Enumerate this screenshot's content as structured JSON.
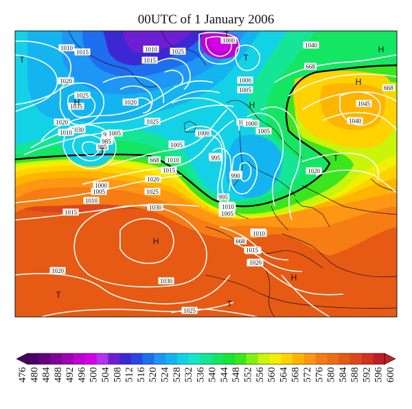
{
  "title": "00UTC of 1 January 2006",
  "colorbar": {
    "ticks": [
      "476",
      "480",
      "484",
      "488",
      "492",
      "496",
      "500",
      "504",
      "508",
      "512",
      "516",
      "520",
      "524",
      "528",
      "532",
      "536",
      "540",
      "544",
      "548",
      "552",
      "556",
      "560",
      "564",
      "568",
      "572",
      "576",
      "580",
      "584",
      "588",
      "592",
      "596",
      "600"
    ],
    "colors": [
      "#4a0064",
      "#64007d",
      "#82009a",
      "#a000b4",
      "#be00d2",
      "#d200e6",
      "#b432f0",
      "#6e1ed2",
      "#3c28d2",
      "#2846e6",
      "#1e6ef0",
      "#1e96f5",
      "#14b4f0",
      "#14d2e6",
      "#14e6c8",
      "#14e696",
      "#14e664",
      "#14e632",
      "#3ce61e",
      "#82f014",
      "#c8f50a",
      "#f0f000",
      "#ffd200",
      "#ffb400",
      "#ff9614",
      "#f57d14",
      "#eb6e14",
      "#e65a14",
      "#dc461e",
      "#d2321e",
      "#be1e28"
    ]
  },
  "pressure_labels": [
    {
      "t": "1010"
    },
    {
      "t": "1020"
    },
    {
      "t": "1015"
    },
    {
      "t": "1025"
    },
    {
      "t": "1035"
    },
    {
      "t": "1030"
    },
    {
      "t": "995"
    },
    {
      "t": "995"
    },
    {
      "t": "985"
    },
    {
      "t": "1040"
    },
    {
      "t": "668"
    },
    {
      "t": "668"
    },
    {
      "t": "1020"
    },
    {
      "t": "1025"
    },
    {
      "t": "1010"
    },
    {
      "t": "1005"
    },
    {
      "t": "1020"
    },
    {
      "t": "1015"
    },
    {
      "t": "1025"
    },
    {
      "t": "1005"
    },
    {
      "t": "1000"
    },
    {
      "t": "1000"
    },
    {
      "t": "1005"
    },
    {
      "t": "1045"
    },
    {
      "t": "1040"
    },
    {
      "t": "1020"
    },
    {
      "t": "1015"
    },
    {
      "t": "1010"
    },
    {
      "t": "995"
    },
    {
      "t": "990"
    },
    {
      "t": "985"
    },
    {
      "t": "1000"
    },
    {
      "t": "1005"
    },
    {
      "t": "1005"
    },
    {
      "t": "1010"
    },
    {
      "t": "1000"
    },
    {
      "t": "1005"
    },
    {
      "t": "668"
    },
    {
      "t": "1010"
    },
    {
      "t": "995"
    },
    {
      "t": "990"
    },
    {
      "t": "1015"
    },
    {
      "t": "1020"
    },
    {
      "t": "1000"
    },
    {
      "t": "1005"
    },
    {
      "t": "1010"
    },
    {
      "t": "1025"
    },
    {
      "t": "995"
    },
    {
      "t": "1000"
    },
    {
      "t": "1005"
    },
    {
      "t": "1015"
    },
    {
      "t": "1030"
    },
    {
      "t": "1010"
    },
    {
      "t": "668"
    },
    {
      "t": "1015"
    },
    {
      "t": "1020"
    },
    {
      "t": "1020"
    },
    {
      "t": "1030"
    },
    {
      "t": "1025"
    },
    {
      "t": "1020"
    },
    {
      "t": "1005"
    },
    {
      "t": "1010"
    },
    {
      "t": "1000"
    }
  ],
  "pressure_centres": [
    {
      "t": "T"
    },
    {
      "t": "H"
    },
    {
      "t": "T"
    },
    {
      "t": "T"
    },
    {
      "t": "H"
    },
    {
      "t": "H"
    },
    {
      "t": "H"
    },
    {
      "t": "T"
    },
    {
      "t": "T"
    },
    {
      "t": "H"
    },
    {
      "t": "T"
    },
    {
      "t": "H"
    },
    {
      "t": "T"
    }
  ]
}
